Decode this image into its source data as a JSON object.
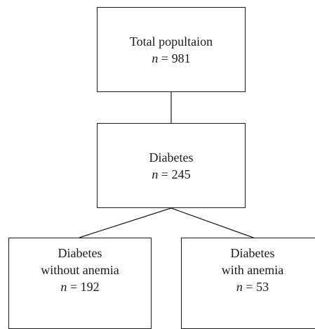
{
  "nodes": {
    "total": {
      "label": "Total popultaion",
      "n_symbol": "n",
      "n_text": " = 981"
    },
    "diabetes": {
      "label": "Diabetes",
      "n_symbol": "n",
      "n_text": " = 245"
    },
    "without_anemia": {
      "label_line1": "Diabetes",
      "label_line2": "without anemia",
      "n_symbol": "n",
      "n_text": " = 192"
    },
    "with_anemia": {
      "label_line1": "Diabetes",
      "label_line2": "with anemia",
      "n_symbol": "n",
      "n_text": " = 53"
    }
  }
}
